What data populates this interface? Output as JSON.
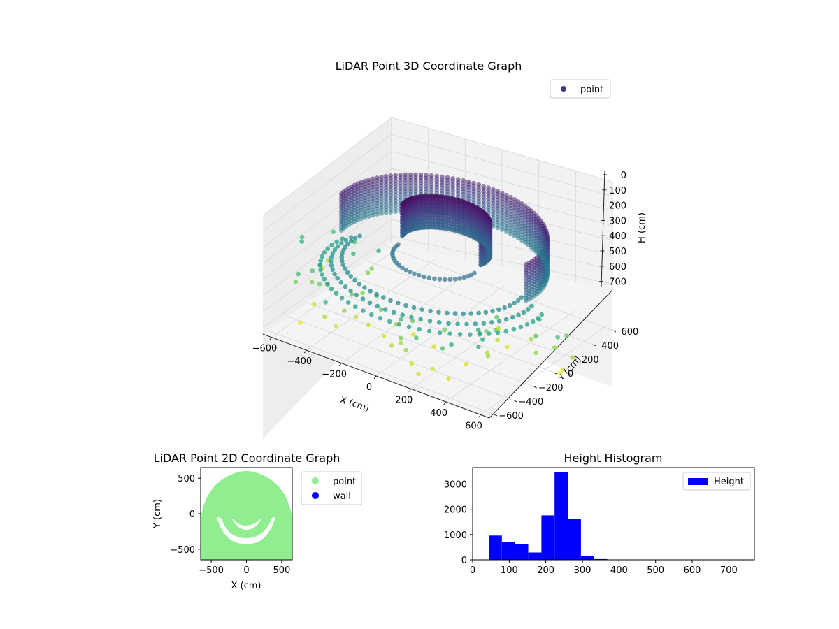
{
  "chart_data": [
    {
      "type": "scatter3d",
      "title": "LiDAR Point 3D Coordinate Graph",
      "xlabel": "X (cm)",
      "ylabel": "Y (cm)",
      "zlabel": "H (cm)",
      "xticks": [
        "−600",
        "−400",
        "−200",
        "0",
        "200",
        "400",
        "600"
      ],
      "yticks": [
        "−600",
        "−400",
        "−200",
        "0",
        "200",
        "400",
        "600"
      ],
      "zticks": [
        "0",
        "100",
        "200",
        "300",
        "400",
        "500",
        "600",
        "700"
      ],
      "xlim": [
        -650,
        650
      ],
      "ylim": [
        -650,
        650
      ],
      "zlim": [
        0,
        740
      ],
      "z_inverted": true,
      "legend": {
        "placement": "top-right",
        "entries": [
          {
            "label": "point",
            "color": "#453581"
          }
        ]
      },
      "colormap": "viridis",
      "grid": true
    },
    {
      "type": "scatter",
      "title": "LiDAR Point 2D Coordinate Graph",
      "xlabel": "X (cm)",
      "ylabel": "Y (cm)",
      "xticks": [
        "−500",
        "0",
        "500"
      ],
      "yticks": [
        "−500",
        "0",
        "500"
      ],
      "xlim": [
        -650,
        650
      ],
      "ylim": [
        -650,
        650
      ],
      "legend": {
        "placement": "outside-right",
        "entries": [
          {
            "label": "point",
            "color": "#90ee90"
          },
          {
            "label": "wall",
            "color": "#0000ff"
          }
        ]
      }
    },
    {
      "type": "bar",
      "title": "Height Histogram",
      "xticks": [
        "0",
        "100",
        "200",
        "300",
        "400",
        "500",
        "600",
        "700"
      ],
      "yticks": [
        "0",
        "1000",
        "2000",
        "3000"
      ],
      "xlim": [
        0,
        770
      ],
      "ylim": [
        0,
        3650
      ],
      "bin_edges": [
        44,
        80,
        116,
        152,
        188,
        224,
        260,
        296,
        332,
        368,
        404,
        440,
        476,
        512,
        548,
        584,
        620,
        656,
        692,
        728
      ],
      "values": [
        960,
        720,
        630,
        290,
        1760,
        3460,
        1630,
        140,
        30,
        10,
        5,
        3,
        2,
        2,
        1,
        1,
        1,
        1,
        1
      ],
      "color": "#0000ff",
      "legend": {
        "placement": "top-right",
        "entries": [
          {
            "label": "Height",
            "color": "#0000ff"
          }
        ]
      }
    }
  ]
}
